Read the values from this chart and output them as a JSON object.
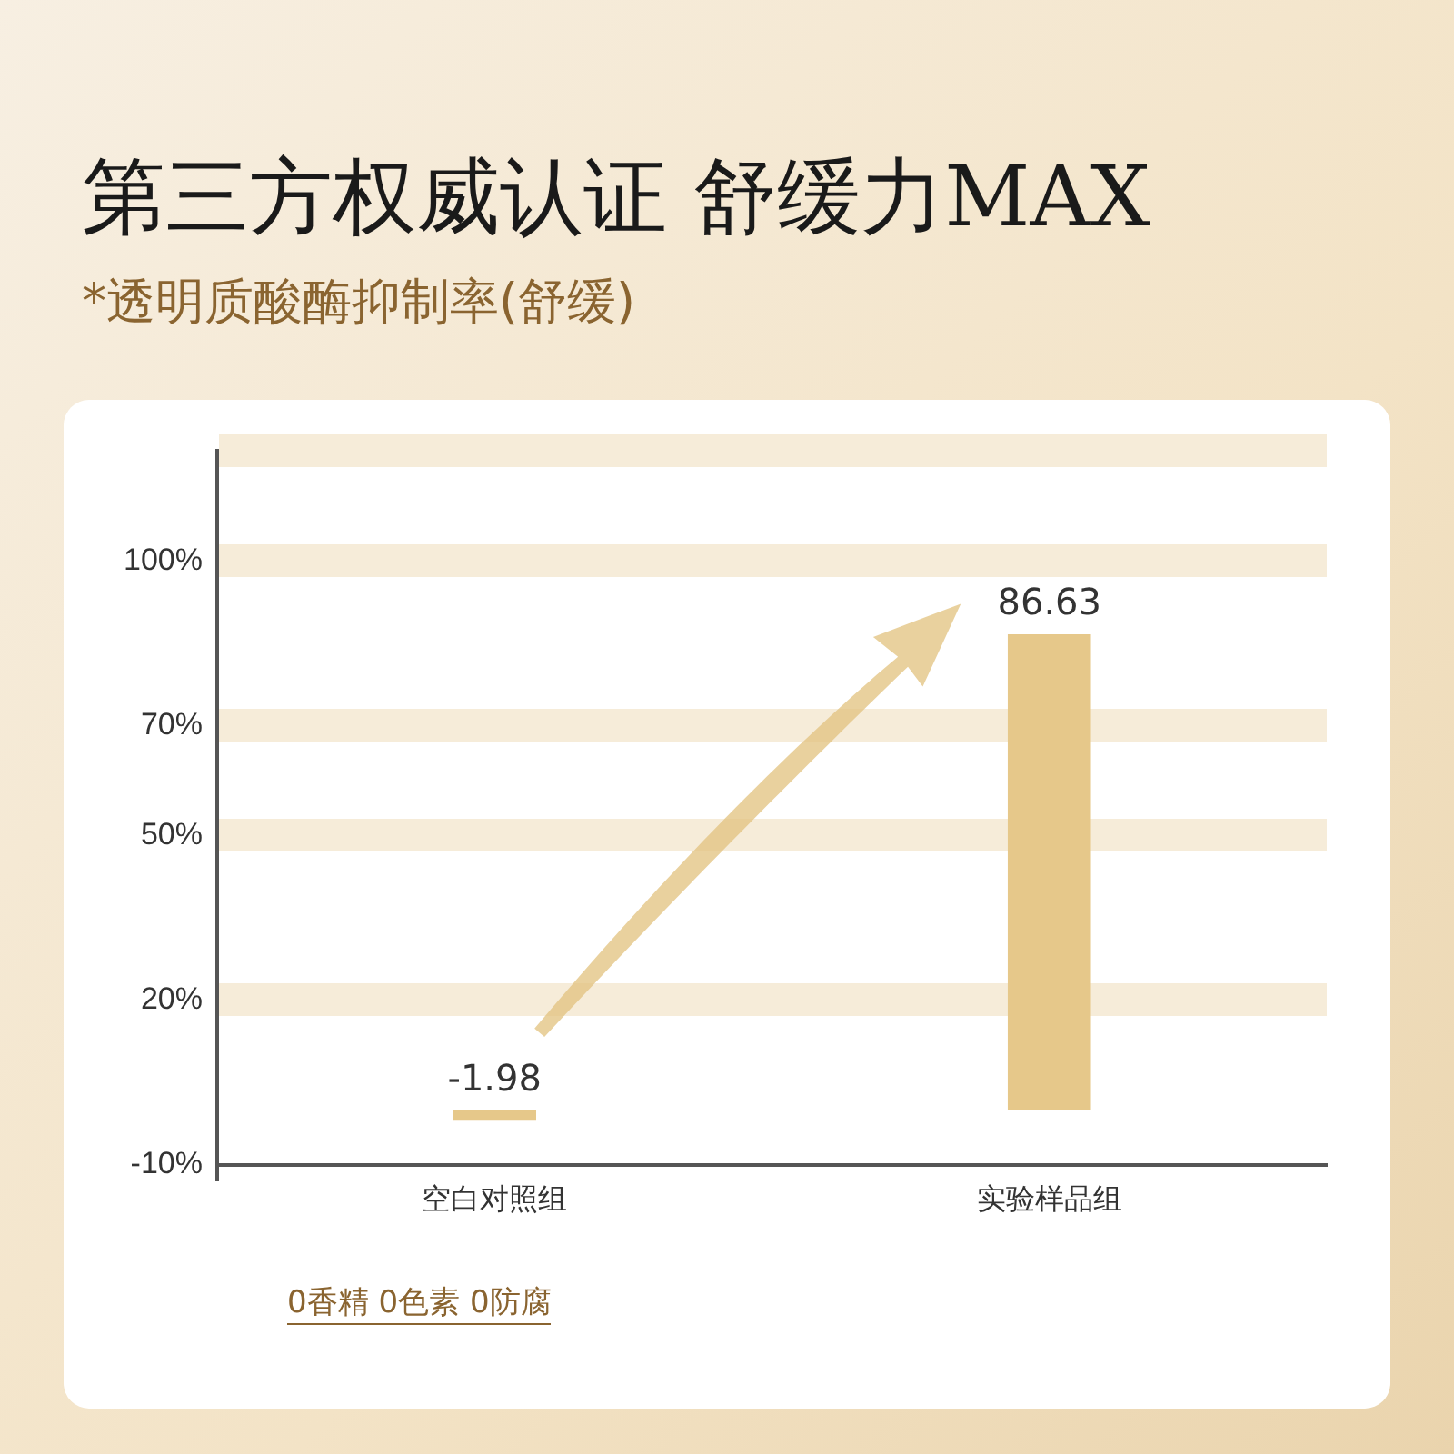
{
  "chart_data": {
    "type": "bar",
    "title": "第三方权威认证 舒缓力MAX",
    "subtitle": "*透明质酸酶抑制率(舒缓)",
    "categories": [
      "空白对照组",
      "实验样品组"
    ],
    "values": [
      -1.98,
      86.63
    ],
    "color": "#e6c88a",
    "ylim": [
      -10,
      120
    ],
    "yticks": [
      {
        "value": -10,
        "label": "-10%"
      },
      {
        "value": 20,
        "label": "20%"
      },
      {
        "value": 50,
        "label": "50%"
      },
      {
        "value": 70,
        "label": "70%"
      },
      {
        "value": 100,
        "label": "100%"
      },
      {
        "value": 120,
        "label": null
      }
    ],
    "grid": "y",
    "data_labels": true,
    "annotations": [
      "0香精 0色素 0防腐"
    ]
  }
}
